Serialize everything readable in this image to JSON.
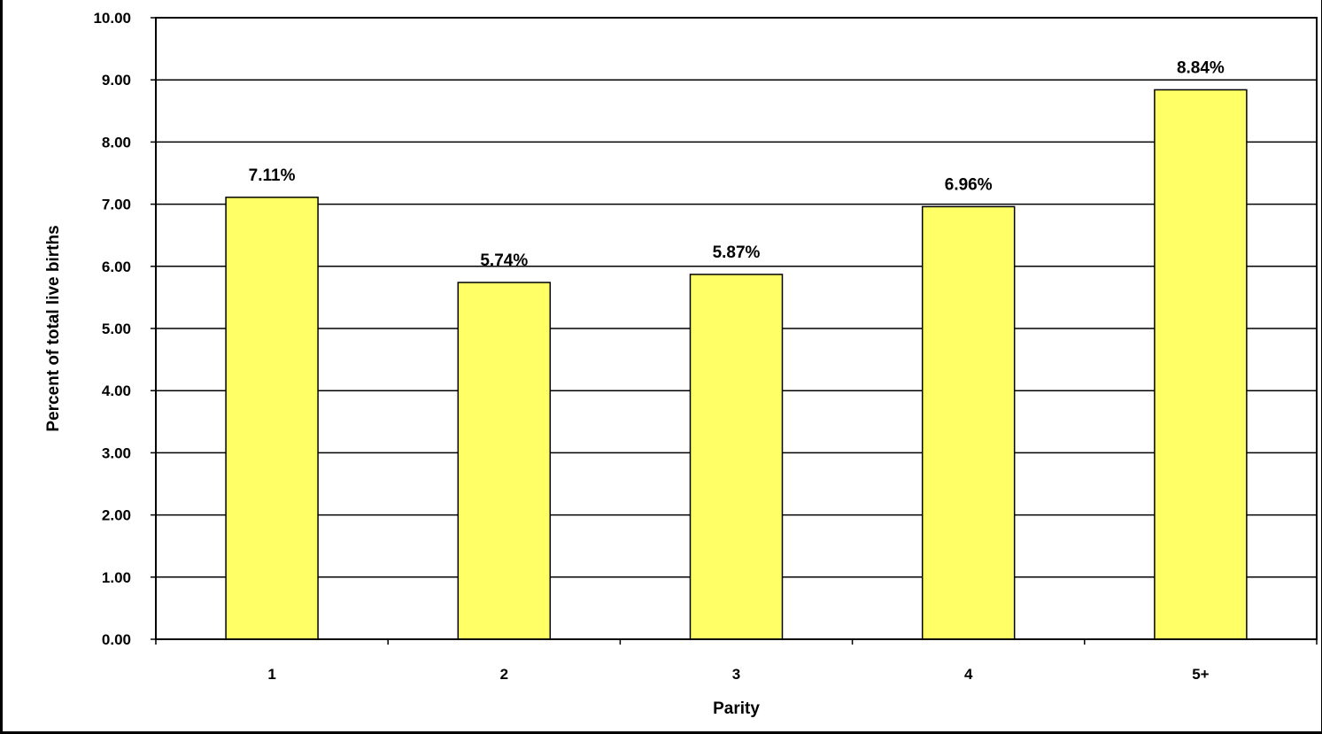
{
  "chart_data": {
    "type": "bar",
    "categories": [
      "1",
      "2",
      "3",
      "4",
      "5+"
    ],
    "values": [
      7.11,
      5.74,
      5.87,
      6.96,
      8.84
    ],
    "data_labels": [
      "7.11%",
      "5.74%",
      "5.87%",
      "6.96%",
      "8.84%"
    ],
    "title": "",
    "xlabel": "Parity",
    "ylabel": "Percent of total live births",
    "ylim": [
      0,
      10
    ],
    "yticks": [
      "0.00",
      "1.00",
      "2.00",
      "3.00",
      "4.00",
      "5.00",
      "6.00",
      "7.00",
      "8.00",
      "9.00",
      "10.00"
    ],
    "grid": true,
    "legend": "none",
    "colors": {
      "bar_fill": "#FFFF66",
      "bar_stroke": "#000000",
      "grid": "#000000",
      "background": "#FFFFFF"
    }
  }
}
